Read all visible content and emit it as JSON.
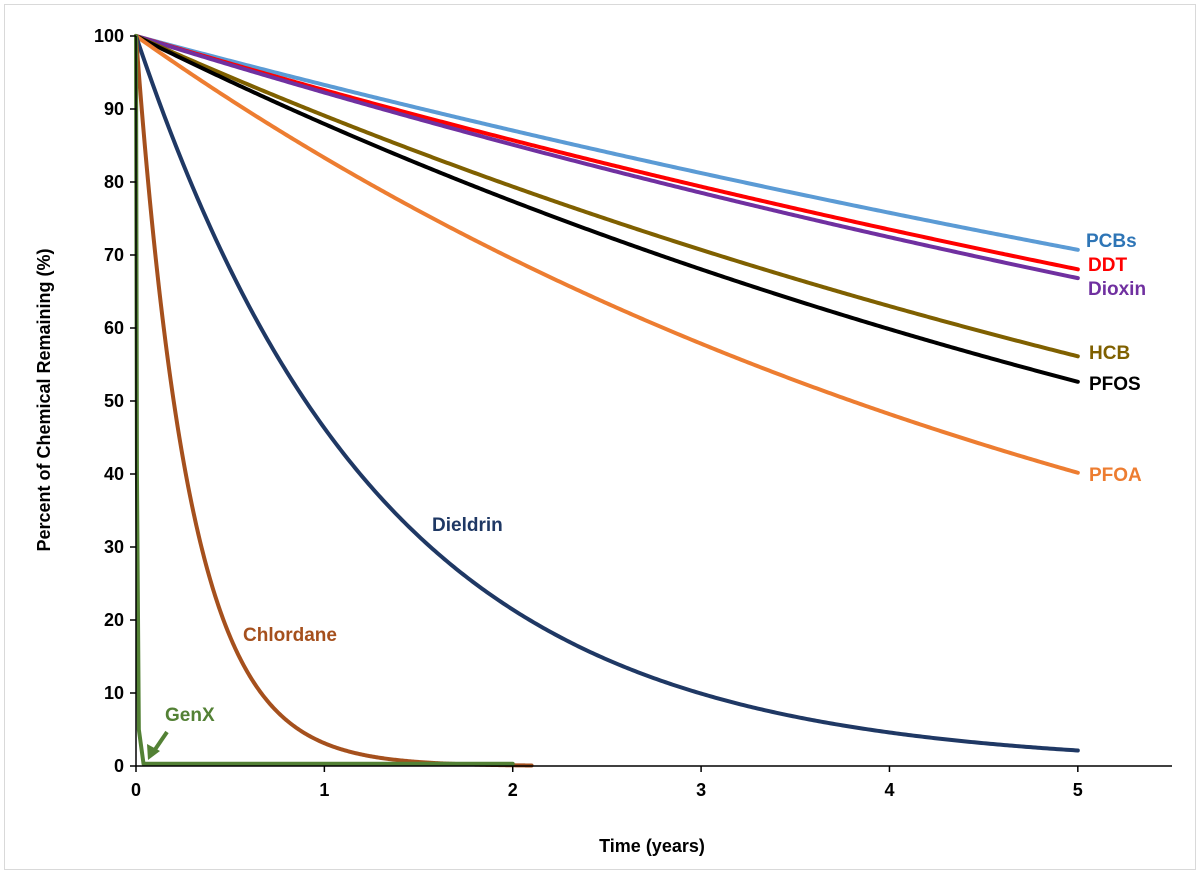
{
  "chart_data": {
    "type": "line",
    "xlabel": "Time (years)",
    "ylabel": "Percent of Chemical Remaining (%)",
    "xlim": [
      0,
      5.5
    ],
    "ylim": [
      0,
      100
    ],
    "x_ticks": [
      0,
      1,
      2,
      3,
      4,
      5
    ],
    "y_ticks": [
      0,
      10,
      20,
      30,
      40,
      50,
      60,
      70,
      80,
      90,
      100
    ],
    "grid": false,
    "legend": "none (inline labels)",
    "series": [
      {
        "name": "PCBs",
        "color": "#5b9bd5",
        "x_start": 0,
        "x_end": 5,
        "half_life_years": 10.0,
        "end_value": 70.7
      },
      {
        "name": "DDT",
        "color": "#ff0000",
        "x_start": 0,
        "x_end": 5,
        "half_life_years": 9.0,
        "end_value": 68.0
      },
      {
        "name": "Dioxin",
        "color": "#7030a0",
        "x_start": 0,
        "x_end": 5,
        "half_life_years": 8.6,
        "end_value": 66.8
      },
      {
        "name": "HCB",
        "color": "#7f6000",
        "x_start": 0,
        "x_end": 5,
        "half_life_years": 6.0,
        "end_value": 56.1
      },
      {
        "name": "PFOS",
        "color": "#000000",
        "x_start": 0,
        "x_end": 5,
        "half_life_years": 5.4,
        "end_value": 52.6
      },
      {
        "name": "PFOA",
        "color": "#ed7d31",
        "x_start": 0,
        "x_end": 5,
        "half_life_years": 3.8,
        "end_value": 40.1
      },
      {
        "name": "Dieldrin",
        "color": "#1f3864",
        "x_start": 0,
        "x_end": 5,
        "half_life_years": 0.9,
        "end_value": 2.1
      },
      {
        "name": "Chlordane",
        "color": "#a5501d",
        "x_start": 0,
        "x_end": 2.1,
        "half_life_years": 0.2,
        "end_value": 0.0
      },
      {
        "name": "GenX",
        "color": "#538135",
        "x_start": 0,
        "x_end": 2.0,
        "half_life_years": 0.006,
        "end_value": 0.0
      }
    ]
  }
}
